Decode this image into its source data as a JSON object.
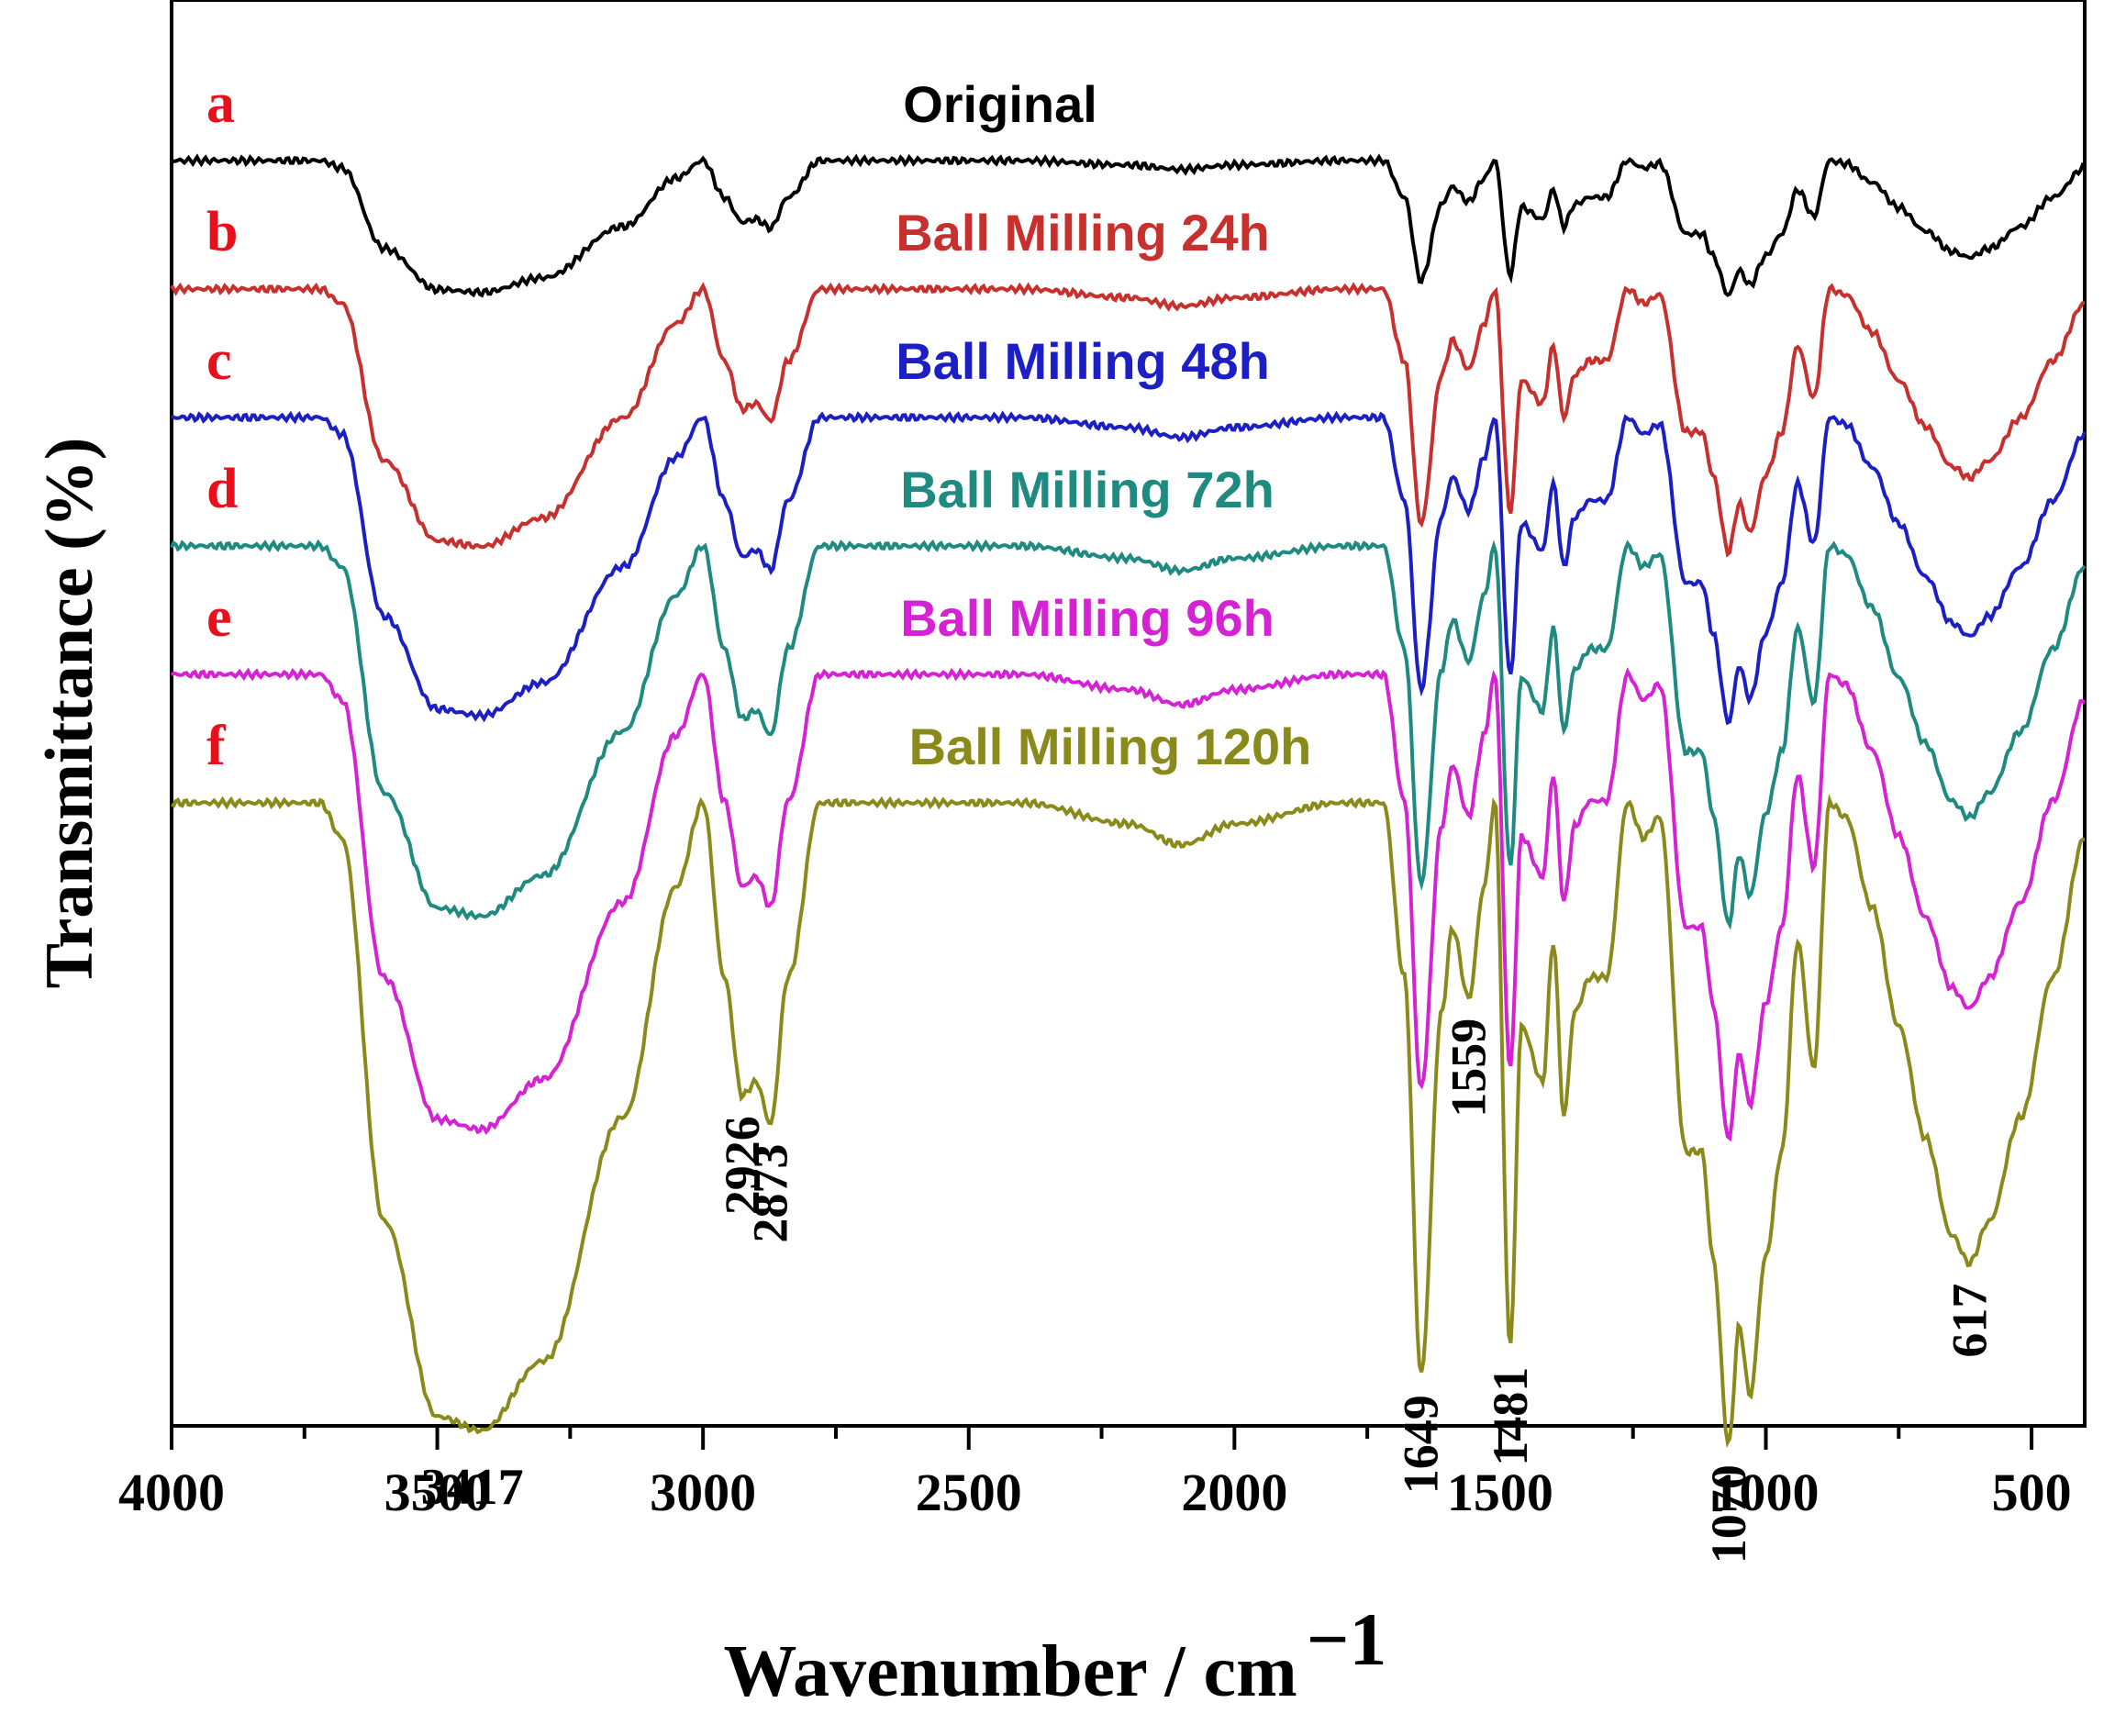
{
  "chart_data": {
    "type": "line",
    "title": "",
    "xlabel": "Wavenumber / cm",
    "xlabel_superscript": "−1",
    "ylabel": "Transmittance (%)",
    "xlim": [
      4000,
      400
    ],
    "x_ticks": [
      4000,
      3500,
      3000,
      2500,
      2000,
      1500,
      1000,
      500
    ],
    "y_ticks": [],
    "grid": false,
    "legend": "inline labels above each curve",
    "series": [
      {
        "letter": "a",
        "name": "Original",
        "color": "#000000",
        "letter_color": "#e8101a",
        "baseline": 0,
        "scale": 0.42
      },
      {
        "letter": "b",
        "name": "Ball Milling 24h",
        "color": "#c8302e",
        "letter_color": "#e8101a",
        "baseline": -1,
        "scale": 0.82
      },
      {
        "letter": "c",
        "name": "Ball Milling 48h",
        "color": "#1b1fc4",
        "letter_color": "#e8101a",
        "baseline": -2,
        "scale": 0.95
      },
      {
        "letter": "d",
        "name": "Ball Milling 72h",
        "color": "#1e8a80",
        "letter_color": "#e8101a",
        "baseline": -3,
        "scale": 1.18
      },
      {
        "letter": "e",
        "name": "Ball Milling 96h",
        "color": "#d422d4",
        "letter_color": "#e8101a",
        "baseline": -4,
        "scale": 1.45
      },
      {
        "letter": "f",
        "name": "Ball Milling 120h",
        "color": "#8a8a1a",
        "letter_color": "#e8101a",
        "baseline": -5,
        "scale": 2.0
      }
    ],
    "spectrum_profile": {
      "x": [
        4000,
        3720,
        3680,
        3600,
        3500,
        3417,
        3300,
        3150,
        3050,
        3000,
        2960,
        2926,
        2900,
        2873,
        2840,
        2780,
        2700,
        2400,
        2200,
        2100,
        2000,
        1800,
        1720,
        1680,
        1649,
        1610,
        1590,
        1559,
        1530,
        1510,
        1481,
        1460,
        1420,
        1400,
        1380,
        1360,
        1330,
        1300,
        1260,
        1230,
        1200,
        1150,
        1120,
        1100,
        1070,
        1050,
        1030,
        1000,
        970,
        940,
        910,
        880,
        850,
        800,
        750,
        700,
        650,
        617,
        580,
        520,
        460,
        400
      ],
      "depth": [
        0.0,
        0.0,
        0.05,
        0.6,
        0.88,
        0.9,
        0.8,
        0.45,
        0.12,
        0.0,
        0.25,
        0.42,
        0.4,
        0.46,
        0.25,
        0.0,
        0.0,
        0.0,
        0.03,
        0.06,
        0.03,
        0.0,
        0.0,
        0.25,
        0.82,
        0.3,
        0.18,
        0.28,
        0.12,
        0.0,
        0.78,
        0.32,
        0.4,
        0.2,
        0.45,
        0.3,
        0.25,
        0.25,
        0.0,
        0.05,
        0.02,
        0.5,
        0.5,
        0.65,
        0.92,
        0.75,
        0.85,
        0.65,
        0.5,
        0.2,
        0.38,
        0.0,
        0.02,
        0.15,
        0.32,
        0.48,
        0.62,
        0.66,
        0.6,
        0.45,
        0.25,
        0.05
      ]
    },
    "peak_annotations": [
      {
        "label": "3417",
        "x": 3417,
        "rotated": false
      },
      {
        "label": "2926",
        "x": 2926,
        "rotated": true
      },
      {
        "label": "2873",
        "x": 2873,
        "rotated": true
      },
      {
        "label": "1649",
        "x": 1649,
        "rotated": true
      },
      {
        "label": "1559",
        "x": 1559,
        "rotated": true
      },
      {
        "label": "1481",
        "x": 1481,
        "rotated": true
      },
      {
        "label": "1070",
        "x": 1070,
        "rotated": true
      },
      {
        "label": "617",
        "x": 617,
        "rotated": true
      }
    ]
  }
}
